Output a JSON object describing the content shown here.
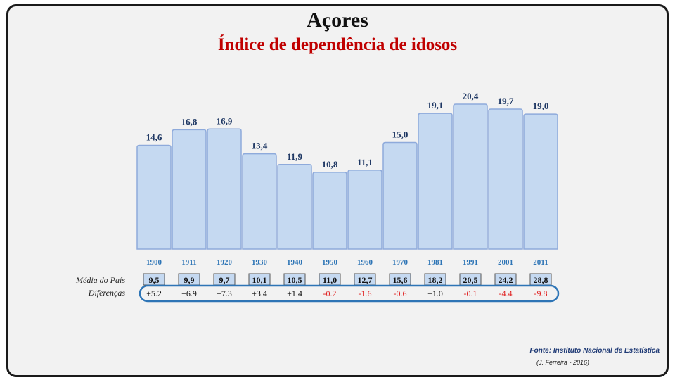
{
  "header": {
    "title": "Açores",
    "subtitle": "Índice de dependência de idosos"
  },
  "rows": {
    "media_label": "Média do País",
    "diff_label": "Diferenças"
  },
  "footer": {
    "source": "Fonte: Instituto Nacional de Estatística",
    "author": "(J. Ferreira - 2016)"
  },
  "colors": {
    "bar_fill": "#c5d9f1",
    "bar_stroke": "#8eaadb",
    "value_text": "#1f3864",
    "year_text": "#2e75b6",
    "positive": "#111111",
    "negative": "#e02020",
    "oval": "#2e75b6"
  },
  "chart_data": {
    "type": "bar",
    "title": "Açores",
    "subtitle": "Índice de dependência de idosos",
    "categories": [
      "1900",
      "1911",
      "1920",
      "1930",
      "1940",
      "1950",
      "1960",
      "1970",
      "1981",
      "1991",
      "2001",
      "2011"
    ],
    "values": [
      14.6,
      16.8,
      16.9,
      13.4,
      11.9,
      10.8,
      11.1,
      15.0,
      19.1,
      20.4,
      19.7,
      19.0
    ],
    "value_labels": [
      "14,6",
      "16,8",
      "16,9",
      "13,4",
      "11,9",
      "10,8",
      "11,1",
      "15,0",
      "19,1",
      "20,4",
      "19,7",
      "19,0"
    ],
    "media_pais": [
      "9,5",
      "9,9",
      "9,7",
      "10,1",
      "10,5",
      "11,0",
      "12,7",
      "15,6",
      "18,2",
      "20,5",
      "24,2",
      "28,8"
    ],
    "diferencas": [
      "+5.2",
      "+6.9",
      "+7.3",
      "+3.4",
      "+1.4",
      "-0.2",
      "-1.6",
      "-0.6",
      "+1.0",
      "-0.1",
      "-4.4",
      "-9.8"
    ],
    "ylim": [
      0,
      25
    ],
    "grid": false,
    "legend": "none"
  }
}
